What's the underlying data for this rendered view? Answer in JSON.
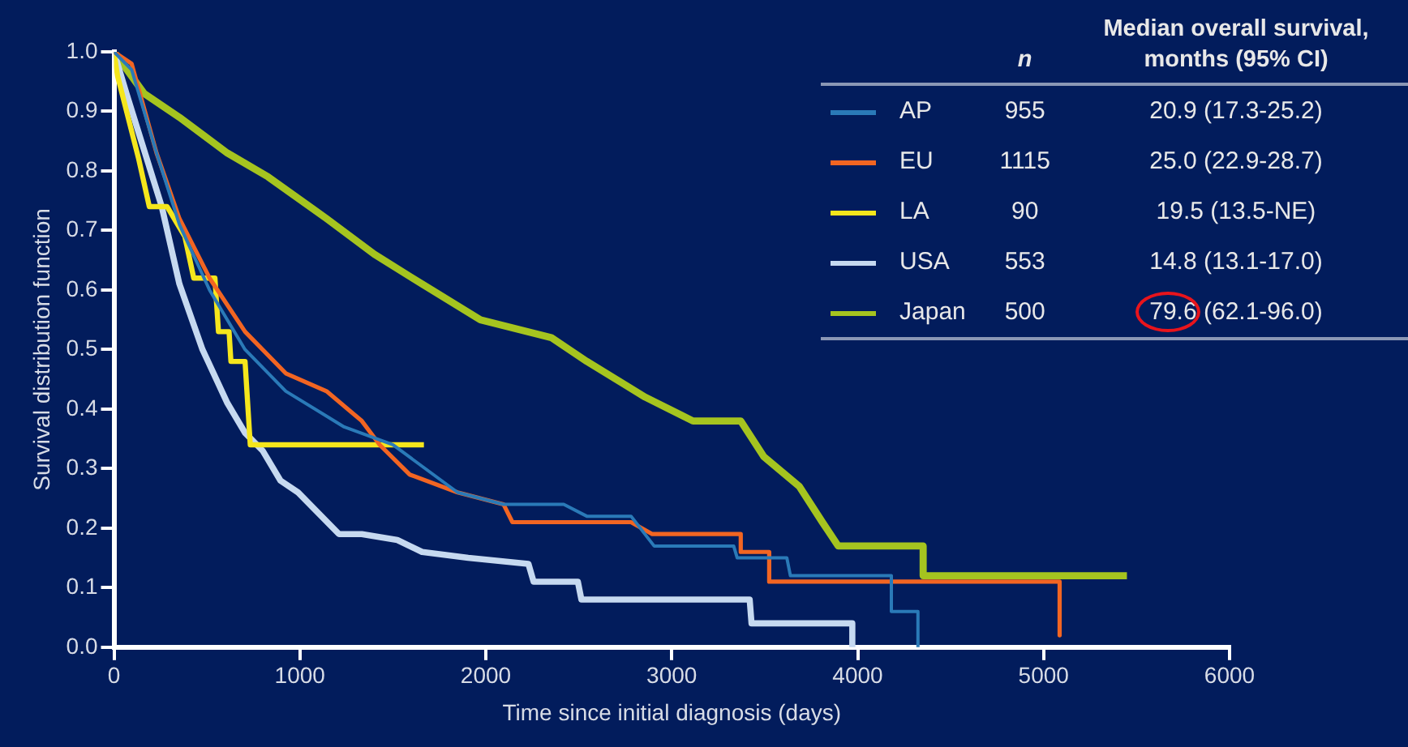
{
  "chart_data": {
    "type": "line",
    "xlabel": "Time since initial diagnosis (days)",
    "ylabel": "Survival distribution function",
    "xlim": [
      0,
      6000
    ],
    "xticks": [
      0,
      1000,
      2000,
      3000,
      4000,
      5000,
      6000
    ],
    "ylim": [
      0,
      1
    ],
    "yticks": [
      {
        "value": 0,
        "label": "0.0"
      },
      0.1,
      0.2,
      0.3,
      0.4,
      0.5,
      0.6,
      0.7,
      0.8,
      0.9,
      {
        "value": 1,
        "label": "1.0"
      }
    ],
    "grid": false,
    "legend": "top right",
    "marker": "none",
    "line_style": "solid",
    "annotations": [
      "n",
      "Median overall survival, months (95% CI)",
      "955",
      "20.9 (17.3-25.2)",
      "1115",
      "25.0 (22.9-28.7)",
      "90",
      "19.5 (13.5-NE)",
      "553",
      "14.8 (13.1-17.0)",
      "500",
      "79.6 (62.1-96.0)"
    ],
    "series": [
      {
        "name": "AP",
        "color": "#2a7ab8",
        "x": [
          0,
          95,
          229,
          352,
          514,
          705,
          924,
          1238,
          1500,
          1848,
          2095,
          2419,
          2543,
          2781,
          2905,
          3333,
          3352,
          3619,
          3638,
          4181,
          4181,
          4324,
          4324
        ],
        "values": [
          1.0,
          0.97,
          0.83,
          0.71,
          0.6,
          0.5,
          0.43,
          0.37,
          0.34,
          0.26,
          0.24,
          0.24,
          0.22,
          0.22,
          0.17,
          0.17,
          0.15,
          0.15,
          0.12,
          0.12,
          0.06,
          0.06,
          0.0
        ]
      },
      {
        "name": "EU",
        "color": "#f26522",
        "x": [
          0,
          95,
          229,
          352,
          514,
          705,
          924,
          1143,
          1333,
          1429,
          1590,
          1848,
          2095,
          2143,
          2781,
          2895,
          3371,
          3371,
          3524,
          3524,
          5086,
          5086
        ],
        "values": [
          1.0,
          0.98,
          0.83,
          0.72,
          0.62,
          0.53,
          0.46,
          0.43,
          0.38,
          0.34,
          0.29,
          0.26,
          0.24,
          0.21,
          0.21,
          0.19,
          0.19,
          0.16,
          0.16,
          0.11,
          0.11,
          0.02
        ]
      },
      {
        "name": "LA",
        "color": "#f5e61c",
        "x": [
          0,
          19,
          133,
          190,
          286,
          381,
          429,
          543,
          562,
          619,
          629,
          705,
          733,
          1667
        ],
        "values": [
          1.0,
          0.96,
          0.82,
          0.74,
          0.74,
          0.69,
          0.62,
          0.62,
          0.53,
          0.53,
          0.48,
          0.48,
          0.34,
          0.34
        ]
      },
      {
        "name": "USA",
        "color": "#c6d9f0",
        "x": [
          0,
          67,
          257,
          352,
          476,
          610,
          705,
          800,
          895,
          990,
          1210,
          1333,
          1524,
          1657,
          1905,
          2229,
          2257,
          2495,
          2514,
          3419,
          3429,
          3971,
          3971
        ],
        "values": [
          1.0,
          0.93,
          0.74,
          0.61,
          0.5,
          0.41,
          0.36,
          0.33,
          0.28,
          0.26,
          0.19,
          0.19,
          0.18,
          0.16,
          0.15,
          0.14,
          0.11,
          0.11,
          0.08,
          0.08,
          0.04,
          0.04,
          0.0
        ]
      },
      {
        "name": "Japan",
        "color": "#a5c41f",
        "x": [
          0,
          162,
          352,
          610,
          829,
          1143,
          1400,
          1657,
          1971,
          2352,
          2543,
          2857,
          3114,
          3371,
          3495,
          3686,
          3810,
          3895,
          4352,
          4352,
          5448
        ],
        "values": [
          1.0,
          0.93,
          0.89,
          0.83,
          0.79,
          0.72,
          0.66,
          0.61,
          0.55,
          0.52,
          0.48,
          0.42,
          0.38,
          0.38,
          0.32,
          0.27,
          0.21,
          0.17,
          0.17,
          0.12,
          0.12
        ]
      }
    ]
  }
}
